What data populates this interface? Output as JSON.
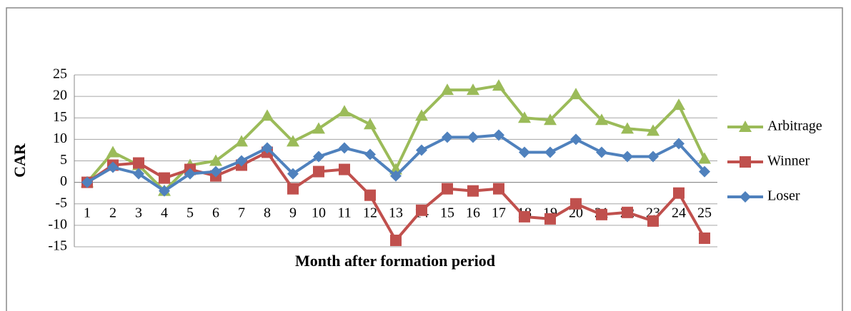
{
  "chart_data": {
    "type": "line",
    "x_label": "Month after formation period",
    "y_label": "CAR",
    "categories": [
      "1",
      "2",
      "3",
      "4",
      "5",
      "6",
      "7",
      "8",
      "9",
      "10",
      "11",
      "12",
      "13",
      "14",
      "15",
      "16",
      "17",
      "18",
      "19",
      "20",
      "21",
      "22",
      "23",
      "24",
      "25"
    ],
    "series": [
      {
        "name": "Arbitrage",
        "color": "#9bbb59",
        "marker": "triangle",
        "values": [
          0,
          7,
          4,
          -2,
          4,
          5,
          9.5,
          15.5,
          9.5,
          12.5,
          16.5,
          13.5,
          3,
          15.5,
          21.5,
          21.5,
          22.5,
          15,
          14.5,
          20.5,
          14.5,
          12.5,
          12,
          18,
          5.5
        ]
      },
      {
        "name": "Winner",
        "color": "#c0504d",
        "marker": "square",
        "values": [
          0,
          4,
          4.5,
          1,
          3,
          1.5,
          4,
          7,
          -1.5,
          2.5,
          3,
          -3,
          -13.5,
          -6.5,
          -1.5,
          -2,
          -1.5,
          -8,
          -8.5,
          -5,
          -7.5,
          -7,
          -9,
          -2.5,
          -13
        ]
      },
      {
        "name": "Loser",
        "color": "#4f81bd",
        "marker": "diamond",
        "values": [
          0,
          3.5,
          2,
          -2,
          2,
          2.5,
          5,
          8,
          2,
          6,
          8,
          6.5,
          1.5,
          7.5,
          10.5,
          10.5,
          11,
          7,
          7,
          10,
          7,
          6,
          6,
          9,
          2.5
        ]
      }
    ],
    "ylim": [
      -15,
      25
    ],
    "yticks": [
      -15,
      -10,
      -5,
      0,
      5,
      10,
      15,
      20,
      25
    ],
    "grid": true,
    "legend": "right"
  }
}
